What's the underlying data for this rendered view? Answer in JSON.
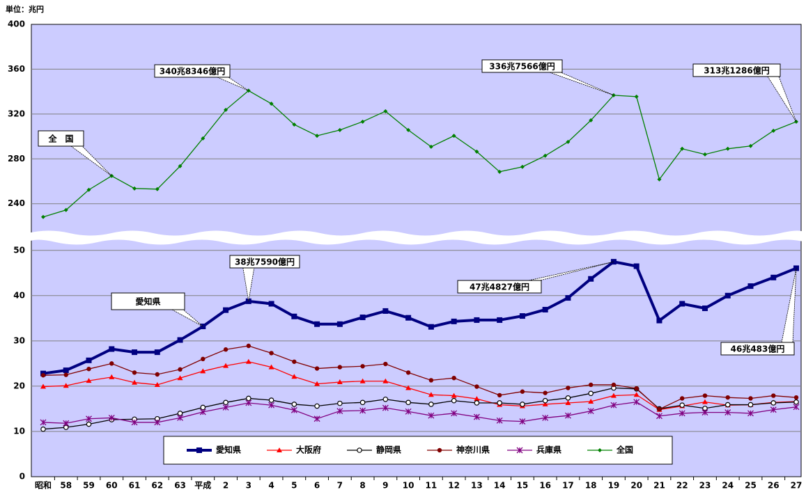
{
  "chart_data": {
    "type": "line",
    "ylabel": "単位：兆円",
    "categories": [
      "昭和",
      "58",
      "59",
      "60",
      "61",
      "62",
      "63",
      "平成",
      "2",
      "3",
      "4",
      "5",
      "6",
      "7",
      "8",
      "9",
      "10",
      "11",
      "12",
      "13",
      "14",
      "15",
      "16",
      "17",
      "18",
      "19",
      "20",
      "21",
      "22",
      "23",
      "24",
      "25",
      "26",
      "27"
    ],
    "ylim": [
      0,
      51.5
    ],
    "yticks": [
      0,
      10,
      20,
      30,
      40,
      50
    ],
    "y2lim": [
      215,
      400
    ],
    "y2ticks": [
      240,
      280,
      320,
      360,
      400
    ],
    "grid": true,
    "series": [
      {
        "name": "愛知県",
        "color": "#000080",
        "marker": "square",
        "values": [
          22.8,
          23.5,
          25.7,
          28.2,
          27.5,
          27.5,
          30.2,
          33.2,
          36.8,
          38.76,
          38.2,
          35.4,
          33.7,
          33.7,
          35.2,
          36.6,
          35.1,
          33.1,
          34.3,
          34.6,
          34.6,
          35.5,
          36.9,
          39.5,
          43.7,
          47.48,
          46.5,
          34.5,
          38.2,
          37.2,
          40,
          42.1,
          44,
          46.05
        ]
      },
      {
        "name": "大阪府",
        "color": "#ff0000",
        "marker": "triangle",
        "values": [
          19.9,
          20.1,
          21.2,
          22,
          20.8,
          20.3,
          21.8,
          23.3,
          24.5,
          25.4,
          24.2,
          22.1,
          20.5,
          20.9,
          21.1,
          21.1,
          19.6,
          18.1,
          17.9,
          17.2,
          15.9,
          15.6,
          16,
          16.3,
          16.6,
          17.9,
          18.1,
          14.8,
          15.6,
          16.5,
          15.8,
          15.9,
          16.4,
          16.6
        ]
      },
      {
        "name": "静岡県",
        "color": "#000000",
        "marker": "circle-open",
        "values": [
          10.5,
          10.9,
          11.6,
          12.6,
          12.7,
          12.8,
          14,
          15.3,
          16.4,
          17.3,
          16.9,
          16,
          15.6,
          16.2,
          16.4,
          17.1,
          16.4,
          16,
          16.8,
          16.3,
          16.3,
          16,
          16.8,
          17.4,
          18.4,
          19.6,
          19.4,
          15,
          15.8,
          15.1,
          15.9,
          15.9,
          16.3,
          16.5
        ]
      },
      {
        "name": "神奈川県",
        "color": "#800000",
        "marker": "circle",
        "values": [
          22.4,
          22.5,
          23.8,
          25,
          23,
          22.6,
          23.7,
          26,
          28.1,
          28.9,
          27.3,
          25.4,
          23.9,
          24.2,
          24.4,
          24.9,
          23,
          21.3,
          21.8,
          19.9,
          18,
          18.8,
          18.5,
          19.6,
          20.3,
          20.3,
          19.5,
          14.9,
          17.3,
          17.9,
          17.5,
          17.3,
          17.9,
          17.5
        ]
      },
      {
        "name": "兵庫県",
        "color": "#800080",
        "marker": "x",
        "values": [
          12,
          11.8,
          12.8,
          13,
          12,
          12,
          13,
          14.3,
          15.3,
          16.3,
          15.8,
          14.7,
          12.8,
          14.5,
          14.6,
          15.2,
          14.4,
          13.5,
          14,
          13.2,
          12.4,
          12.2,
          13,
          13.5,
          14.5,
          15.8,
          16.5,
          13.4,
          14,
          14.2,
          14.2,
          14,
          14.8,
          15.4
        ]
      },
      {
        "name": "全国",
        "color": "#008000",
        "marker": "diamond",
        "axis": "y2",
        "values": [
          228.2,
          234.4,
          252.4,
          264.8,
          253.6,
          253,
          273.5,
          298.3,
          323.7,
          340.83,
          329.2,
          310.6,
          300.6,
          305.7,
          313.2,
          322.5,
          305.7,
          290.8,
          300.6,
          286.5,
          268.5,
          272.9,
          282.8,
          295.2,
          314.4,
          336.76,
          335.5,
          261.7,
          289,
          284,
          289,
          291.5,
          305.1,
          313.13
        ]
      }
    ],
    "annotations": [
      {
        "text": "全　国",
        "series": "全国",
        "x": "60"
      },
      {
        "text": "340兆8346億円",
        "series": "全国",
        "x": "3"
      },
      {
        "text": "336兆7566億円",
        "series": "全国",
        "x": "19"
      },
      {
        "text": "313兆1286億円",
        "series": "全国",
        "x": "27"
      },
      {
        "text": "38兆7590億円",
        "series": "愛知県",
        "x": "3"
      },
      {
        "text": "愛知県",
        "series": "愛知県",
        "x": "平成"
      },
      {
        "text": "47兆4827億円",
        "series": "愛知県",
        "x": "19"
      },
      {
        "text": "46兆483億円",
        "series": "愛知県",
        "x": "27"
      }
    ]
  }
}
